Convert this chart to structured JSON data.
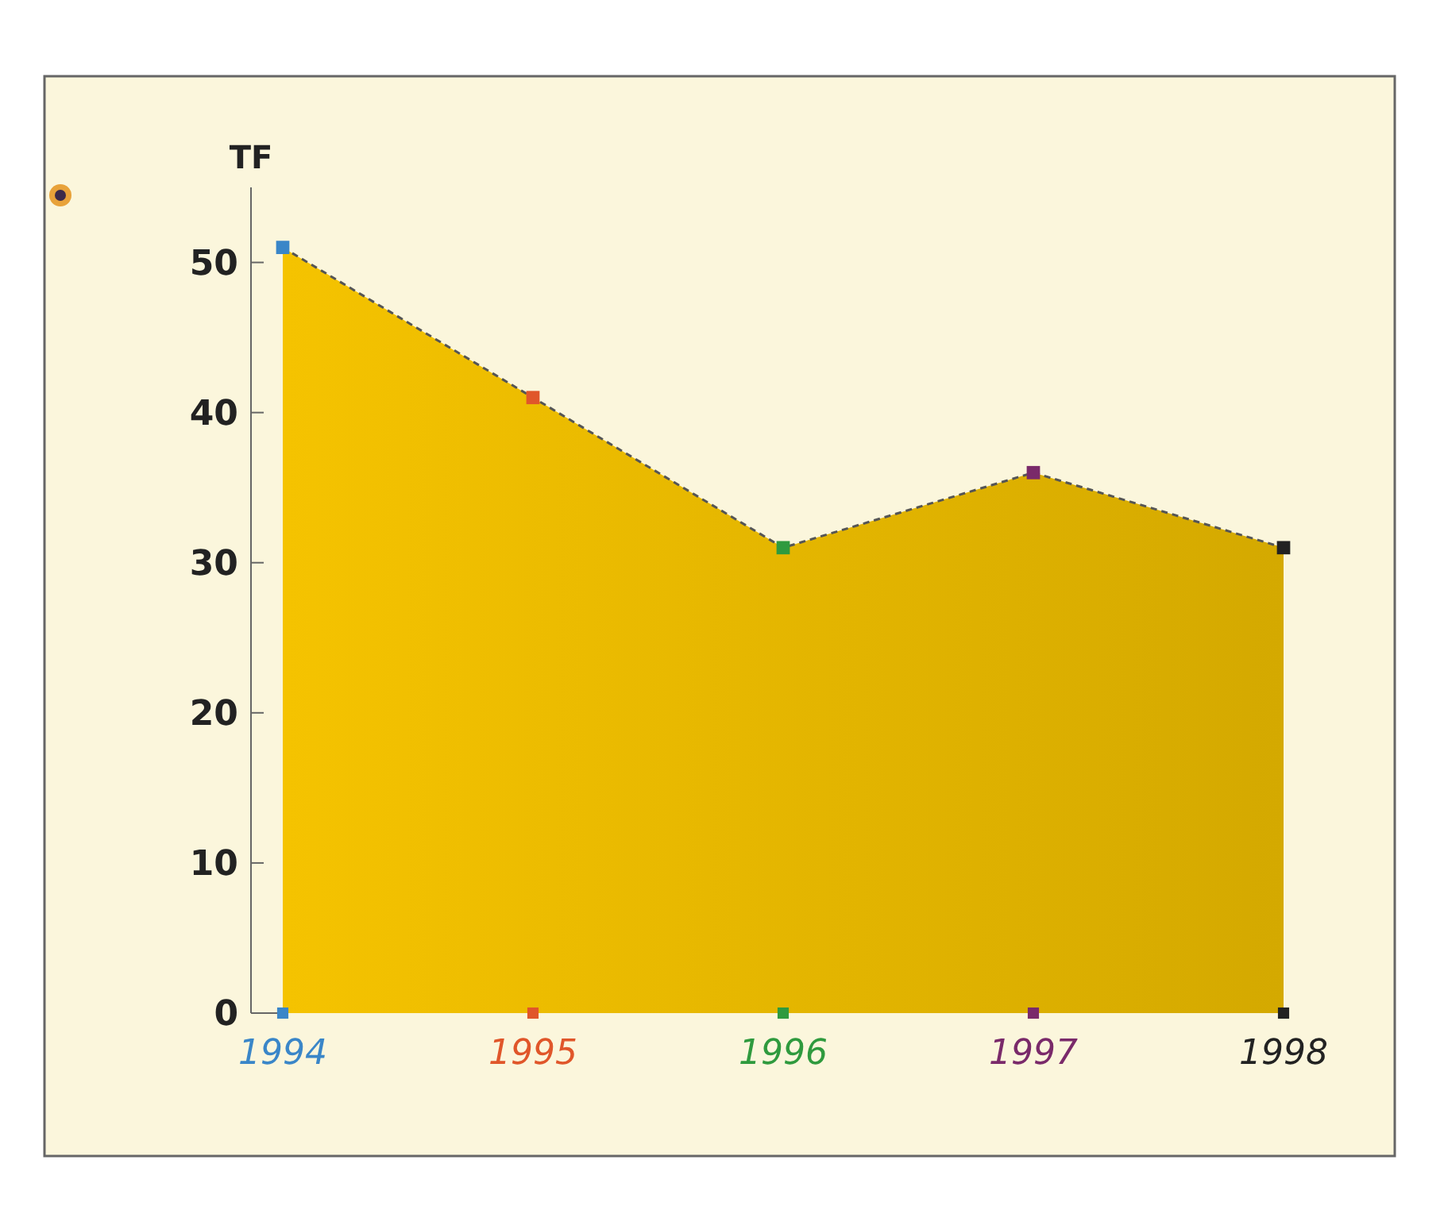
{
  "chart_data": {
    "type": "area",
    "ylabel": "TF",
    "categories": [
      "1994",
      "1995",
      "1996",
      "1997",
      "1998"
    ],
    "series": [
      {
        "color": "#f5c300",
        "values": [
          51,
          41,
          31,
          36,
          31
        ],
        "colors": [
          "#3a86c8",
          "#e0562a",
          "#2f9a3e",
          "#7a2a6a",
          "#222222"
        ]
      }
    ],
    "ylim": [
      0,
      55
    ],
    "yticks": [
      0,
      10,
      20,
      30,
      40,
      50
    ],
    "marker": "square",
    "line_style": "dashed",
    "grid": false
  }
}
